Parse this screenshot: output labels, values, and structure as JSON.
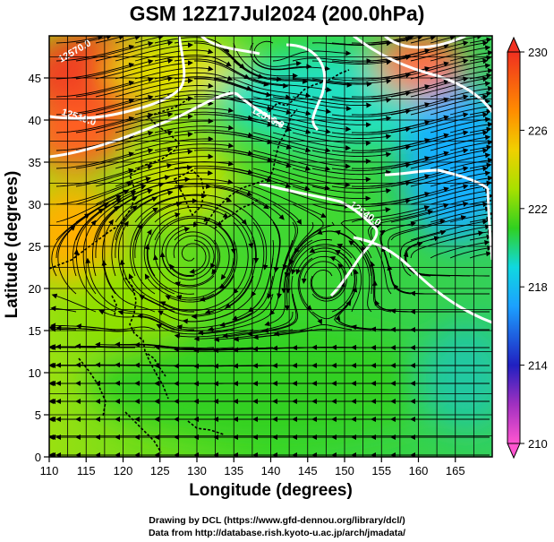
{
  "title": "GSM 12Z17Jul2024 (200.0hPa)",
  "x_axis": {
    "label": "Longitude (degrees)",
    "range": [
      110,
      170
    ],
    "ticks": [
      110,
      115,
      120,
      125,
      130,
      135,
      140,
      145,
      150,
      155,
      160,
      165
    ]
  },
  "y_axis": {
    "label": "Latitude  (degrees)",
    "range": [
      0,
      50
    ],
    "ticks": [
      0,
      5,
      10,
      15,
      20,
      25,
      30,
      35,
      40,
      45
    ]
  },
  "colorbar": {
    "range": [
      210,
      230
    ],
    "tick_labels": [
      "230",
      "226",
      "222",
      "218",
      "214",
      "210"
    ],
    "colors": [
      "#ff55d0",
      "#2020c0",
      "#1ca0ff",
      "#10d8e0",
      "#30d020",
      "#a8e000",
      "#f0d000",
      "#ff8c00",
      "#f03020"
    ]
  },
  "contours": {
    "labels": [
      "12510.0",
      "12540.0",
      "12570.0"
    ]
  },
  "credits": {
    "line1": "Drawing by DCL (https://www.gfd-dennou.org/library/dcl/)",
    "line2": "Data from http://database.rish.kyoto-u.ac.jp/arch/jmadata/"
  },
  "colors": {
    "contour": "#ffffff",
    "streamline": "#000000",
    "coast": "#000000"
  }
}
